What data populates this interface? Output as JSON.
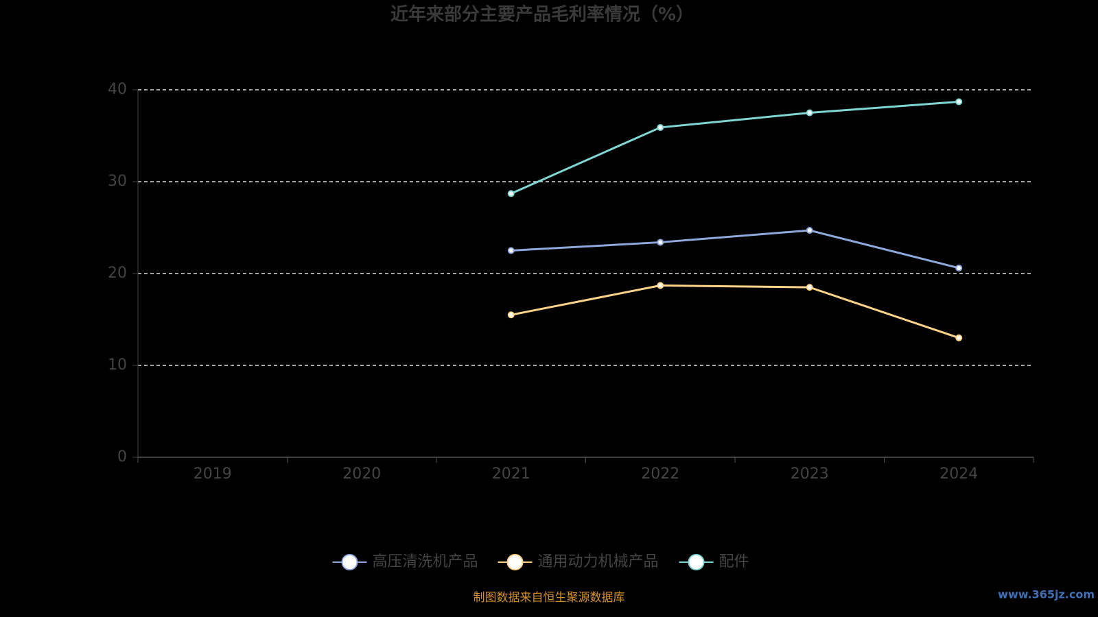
{
  "chart_data": {
    "type": "line",
    "title": "近年来部分主要产品毛利率情况（%）",
    "categories": [
      "2019",
      "2020",
      "2021",
      "2022",
      "2023",
      "2024"
    ],
    "series": [
      {
        "name": "高压清洗机产品",
        "color": "#8fa8dc",
        "values": [
          null,
          null,
          22.5,
          23.4,
          24.7,
          20.6
        ]
      },
      {
        "name": "通用动力机械产品",
        "color": "#fdd38a",
        "values": [
          null,
          null,
          15.5,
          18.7,
          18.5,
          13.0
        ]
      },
      {
        "name": "配件",
        "color": "#7fd6d3",
        "values": [
          null,
          null,
          28.7,
          35.9,
          37.5,
          38.7
        ]
      }
    ],
    "ylim": [
      0,
      40
    ],
    "yticks": [
      0,
      10,
      20,
      30,
      40
    ],
    "grid": true,
    "source": "制图数据来自恒生聚源数据库",
    "watermark": "www.365jz.com"
  }
}
